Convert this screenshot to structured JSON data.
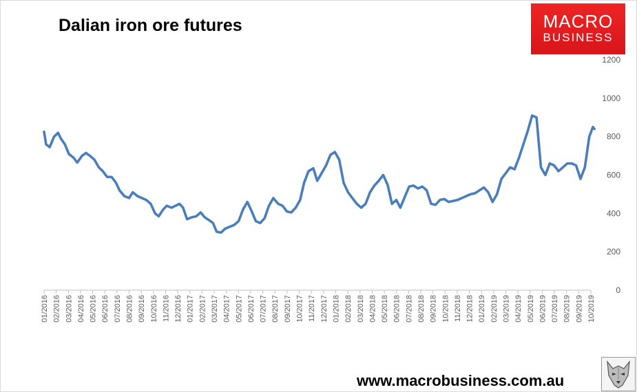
{
  "title": "Dalian iron ore futures",
  "logo": {
    "line1": "MACRO",
    "line2": "BUSINESS"
  },
  "footer": {
    "url": "www.macrobusiness.com.au"
  },
  "colors": {
    "series": "#4a7ebb",
    "logo_bg": "#e21d23"
  },
  "chart_data": {
    "type": "line",
    "title": "Dalian iron ore futures",
    "xlabel": "",
    "ylabel": "",
    "ylim": [
      0,
      1200
    ],
    "yaxis_position": "right",
    "y_ticks": [
      0,
      200,
      400,
      600,
      800,
      1000,
      1200
    ],
    "x_tick_labels": [
      "01/2016",
      "02/2016",
      "03/2016",
      "04/2016",
      "05/2016",
      "06/2016",
      "07/2016",
      "08/2016",
      "09/2016",
      "10/2016",
      "11/2016",
      "12/2016",
      "01/2017",
      "02/2017",
      "03/2017",
      "04/2017",
      "05/2017",
      "06/2017",
      "07/2017",
      "08/2017",
      "09/2017",
      "10/2017",
      "11/2017",
      "12/2017",
      "01/2018",
      "02/2018",
      "03/2018",
      "04/2018",
      "05/2018",
      "06/2018",
      "07/2018",
      "08/2018",
      "09/2018",
      "10/2018",
      "11/2018",
      "12/2018",
      "01/2019",
      "02/2019",
      "03/2019",
      "04/2019",
      "05/2019",
      "06/2019",
      "07/2019",
      "08/2019",
      "09/2019",
      "10/2019"
    ],
    "grid": false,
    "legend": "none",
    "series": [
      {
        "x": [
          "2016-01-01",
          "2016-01-06",
          "2016-01-15",
          "2016-01-26",
          "2016-02-05",
          "2016-02-12",
          "2016-02-22",
          "2016-03-03",
          "2016-03-15",
          "2016-03-24",
          "2016-04-05",
          "2016-04-15",
          "2016-04-25",
          "2016-05-06",
          "2016-05-17",
          "2016-05-27",
          "2016-06-07",
          "2016-06-18",
          "2016-06-29",
          "2016-07-08",
          "2016-07-20",
          "2016-08-01",
          "2016-08-10",
          "2016-08-22",
          "2016-09-02",
          "2016-09-13",
          "2016-09-24",
          "2016-10-05",
          "2016-10-14",
          "2016-10-25",
          "2016-11-03",
          "2016-11-15",
          "2016-11-25",
          "2016-12-05",
          "2016-12-14",
          "2016-12-24",
          "2017-01-05",
          "2017-01-16",
          "2017-01-27",
          "2017-02-06",
          "2017-02-17",
          "2017-02-27",
          "2017-03-08",
          "2017-03-19",
          "2017-03-29",
          "2017-04-09",
          "2017-04-21",
          "2017-05-02",
          "2017-05-13",
          "2017-05-24",
          "2017-06-04",
          "2017-06-14",
          "2017-06-25",
          "2017-07-06",
          "2017-07-17",
          "2017-07-28",
          "2017-08-09",
          "2017-08-20",
          "2017-08-31",
          "2017-09-11",
          "2017-09-22",
          "2017-10-03",
          "2017-10-13",
          "2017-10-24",
          "2017-11-05",
          "2017-11-15",
          "2017-11-26",
          "2017-12-07",
          "2017-12-18",
          "2017-12-29",
          "2018-01-09",
          "2018-01-20",
          "2018-01-31",
          "2018-02-11",
          "2018-02-22",
          "2018-03-05",
          "2018-03-16",
          "2018-03-27",
          "2018-04-07",
          "2018-04-18",
          "2018-04-29",
          "2018-05-10",
          "2018-05-21",
          "2018-06-01",
          "2018-06-11",
          "2018-06-22",
          "2018-07-03",
          "2018-07-14",
          "2018-07-25",
          "2018-08-05",
          "2018-08-16",
          "2018-08-27",
          "2018-09-07",
          "2018-09-18",
          "2018-09-29",
          "2018-10-10",
          "2018-10-21",
          "2018-11-01",
          "2018-11-12",
          "2018-11-23",
          "2018-12-04",
          "2018-12-15",
          "2018-12-26",
          "2019-01-06",
          "2019-01-17",
          "2019-01-28",
          "2019-02-08",
          "2019-02-19",
          "2019-03-02",
          "2019-03-13",
          "2019-03-24",
          "2019-04-04",
          "2019-04-15",
          "2019-04-26",
          "2019-05-07",
          "2019-05-18",
          "2019-05-29",
          "2019-06-09",
          "2019-06-20",
          "2019-07-01",
          "2019-07-12",
          "2019-07-23",
          "2019-08-03",
          "2019-08-14",
          "2019-08-25",
          "2019-09-05",
          "2019-09-16",
          "2019-09-27",
          "2019-10-06",
          "2019-10-10"
        ],
        "y": [
          825,
          760,
          745,
          800,
          820,
          790,
          760,
          710,
          690,
          665,
          700,
          715,
          700,
          680,
          640,
          620,
          590,
          590,
          560,
          520,
          490,
          480,
          510,
          490,
          480,
          470,
          450,
          400,
          385,
          420,
          440,
          430,
          440,
          450,
          430,
          370,
          380,
          385,
          405,
          380,
          365,
          350,
          305,
          300,
          320,
          330,
          340,
          360,
          420,
          460,
          410,
          360,
          350,
          375,
          440,
          480,
          450,
          440,
          410,
          405,
          430,
          470,
          560,
          620,
          635,
          570,
          610,
          650,
          705,
          720,
          680,
          560,
          510,
          480,
          450,
          430,
          450,
          510,
          545,
          570,
          600,
          550,
          450,
          470,
          430,
          485,
          540,
          545,
          530,
          540,
          520,
          450,
          445,
          470,
          475,
          460,
          465,
          470,
          480,
          490,
          500,
          505,
          520,
          535,
          510,
          460,
          500,
          580,
          610,
          640,
          630,
          690,
          760,
          830,
          910,
          900,
          640,
          600,
          660,
          650,
          620,
          640,
          660,
          660,
          650,
          580,
          640,
          800,
          850,
          840
        ]
      }
    ]
  }
}
